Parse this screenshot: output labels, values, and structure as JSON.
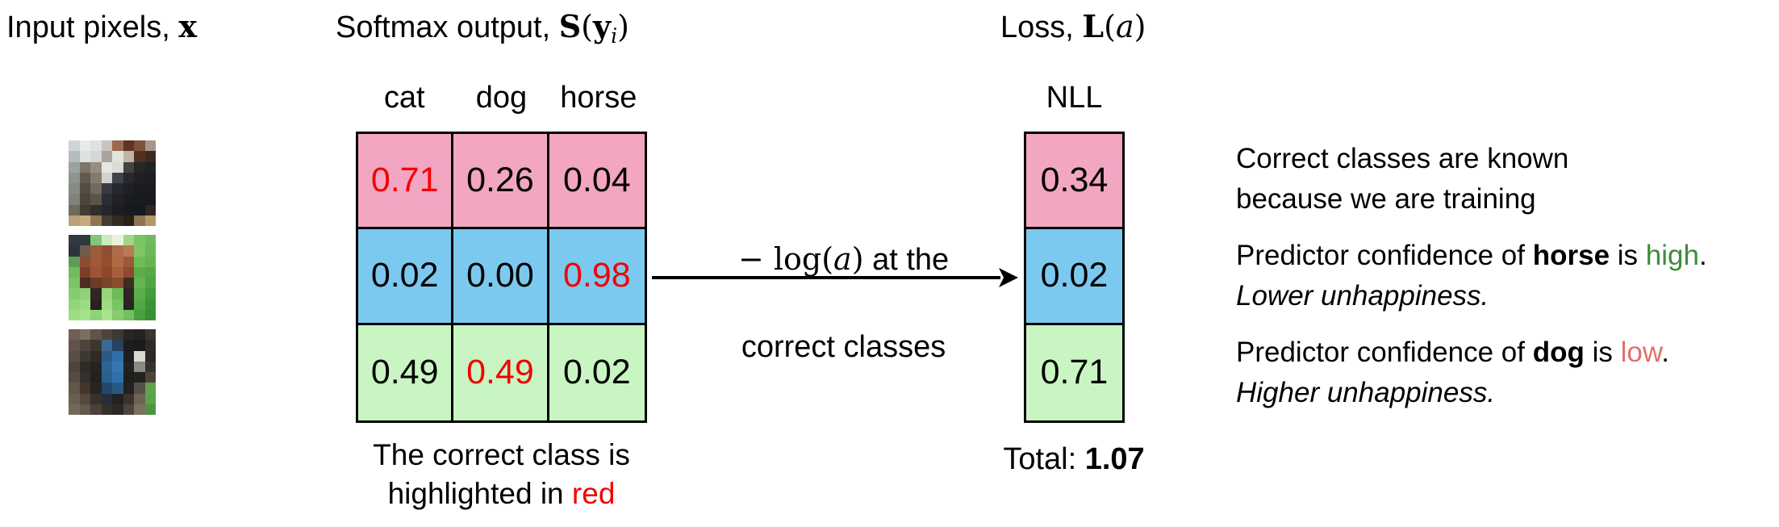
{
  "colors": {
    "row_pink": "#f2a6c2",
    "row_blue": "#7cc9f0",
    "row_green": "#c9f5c2",
    "highlight_red": "#f40000",
    "high_green": "#3c8c3c",
    "low_red": "#e2706c"
  },
  "titles": {
    "input_prefix": "Input pixels, ",
    "input_math": "x",
    "softmax_prefix": "Softmax output, ",
    "softmax_s": "S",
    "softmax_open": "(",
    "softmax_y": "y",
    "softmax_sub": "i",
    "softmax_close": ")",
    "loss_prefix": "Loss, ",
    "loss_l": "L",
    "loss_open": "(",
    "loss_a": "a",
    "loss_close": ")"
  },
  "class_headers": [
    "cat",
    "dog",
    "horse"
  ],
  "matrix": {
    "rows": [
      {
        "row_color": "pink",
        "cells": [
          {
            "value": "0.71",
            "highlight": true
          },
          {
            "value": "0.26",
            "highlight": false
          },
          {
            "value": "0.04",
            "highlight": false
          }
        ]
      },
      {
        "row_color": "blue",
        "cells": [
          {
            "value": "0.02",
            "highlight": false
          },
          {
            "value": "0.00",
            "highlight": false
          },
          {
            "value": "0.98",
            "highlight": true
          }
        ]
      },
      {
        "row_color": "green",
        "cells": [
          {
            "value": "0.49",
            "highlight": false
          },
          {
            "value": "0.49",
            "highlight": true
          },
          {
            "value": "0.02",
            "highlight": false
          }
        ]
      }
    ]
  },
  "arrow": {
    "label_math_prefix": "− log(",
    "label_math_a": "a",
    "label_math_close": ")",
    "label_rest": " at the",
    "label_line2": "correct classes"
  },
  "nll": {
    "header": "NLL",
    "values": [
      "0.34",
      "0.02",
      "0.71"
    ],
    "total_label": "Total: ",
    "total_value": "1.07"
  },
  "caption": {
    "line1": "The correct class is",
    "line2_prefix": "highlighted in ",
    "line2_red_word": "red"
  },
  "notes": {
    "p1_line1": "Correct classes are known",
    "p1_line2": "because we are training",
    "p2_prefix": "Predictor confidence of ",
    "p2_class": "horse",
    "p2_mid": " is ",
    "p2_level": "high",
    "p2_period": ".",
    "p2_line2": "Lower unhappiness.",
    "p3_prefix": "Predictor confidence of ",
    "p3_class": "dog",
    "p3_mid": " is ",
    "p3_level": "low",
    "p3_period": ".",
    "p3_line2": "Higher unhappiness."
  },
  "images": {
    "cat": {
      "label": "cat input image",
      "pixels": [
        [
          "#cfd6d6",
          "#e8ebea",
          "#dfe2e1",
          "#c9c4bd",
          "#9b6a4e",
          "#5e3423",
          "#7c523c",
          "#a8968a"
        ],
        [
          "#b4bcbe",
          "#dde1e0",
          "#d3d7d6",
          "#a8a49e",
          "#e3e3dd",
          "#c0b4a8",
          "#523122",
          "#3c2a22"
        ],
        [
          "#9aa2a2",
          "#7b756b",
          "#968e82",
          "#e6e6e0",
          "#dcdcd6",
          "#46423e",
          "#26262a",
          "#202228"
        ],
        [
          "#8f938e",
          "#615a4e",
          "#837c6e",
          "#d2d2cc",
          "#40424a",
          "#26282e",
          "#1e2026",
          "#1c1e24"
        ],
        [
          "#878b85",
          "#554d41",
          "#726a5c",
          "#383a40",
          "#26282e",
          "#1e2026",
          "#1a1c22",
          "#1a1c22"
        ],
        [
          "#7f837c",
          "#4a453d",
          "#5c5449",
          "#2c2e34",
          "#202228",
          "#1a1c22",
          "#181a20",
          "#181a20"
        ],
        [
          "#6f6a5e",
          "#413d33",
          "#332f2b",
          "#24262c",
          "#1c1e24",
          "#181a20",
          "#161820",
          "#2e2720"
        ],
        [
          "#bb9f78",
          "#c8a97e",
          "#907656",
          "#443c30",
          "#322b22",
          "#28211a",
          "#8e7350",
          "#b5956a"
        ]
      ]
    },
    "horse": {
      "label": "horse input image",
      "pixels": [
        [
          "#31393f",
          "#2e3a38",
          "#7fc87a",
          "#cdeabc",
          "#e9f2da",
          "#a2d684",
          "#7cc468",
          "#70bc5c"
        ],
        [
          "#2b333b",
          "#6b5c4c",
          "#9c5c3c",
          "#8e4e32",
          "#ae6c4a",
          "#ba7a52",
          "#80c466",
          "#6cb858"
        ],
        [
          "#5f9e52",
          "#8c4c34",
          "#a25836",
          "#964e30",
          "#b26a42",
          "#9c5838",
          "#70bc54",
          "#66b450"
        ],
        [
          "#70bc5c",
          "#7c3e2a",
          "#9c5434",
          "#8c4828",
          "#a6603c",
          "#8c4c2e",
          "#5cac4a",
          "#58a846"
        ],
        [
          "#7cc466",
          "#4c2e22",
          "#6c3c28",
          "#7c442a",
          "#8c4c2e",
          "#3c2c22",
          "#66b454",
          "#50a444"
        ],
        [
          "#88cc70",
          "#90d276",
          "#302622",
          "#96d67c",
          "#6cbc58",
          "#2e2622",
          "#5cac4c",
          "#429c3c"
        ],
        [
          "#92d67a",
          "#9ada82",
          "#262222",
          "#9edc84",
          "#78c462",
          "#2a2422",
          "#52a848",
          "#3c9438"
        ],
        [
          "#9cde84",
          "#a4e28c",
          "#90d276",
          "#a8e48e",
          "#88cc6e",
          "#74c05e",
          "#48a040",
          "#349232"
        ]
      ]
    },
    "dog": {
      "label": "dog input image",
      "pixels": [
        [
          "#6e6052",
          "#7d6f5d",
          "#60544a",
          "#4c433b",
          "#3e3832",
          "#2a2624",
          "#242220",
          "#3a332e"
        ],
        [
          "#62544a",
          "#4e443c",
          "#3c3630",
          "#3a6a92",
          "#26425e",
          "#1e1c1c",
          "#1c1a1a",
          "#2e2a26"
        ],
        [
          "#584e44",
          "#3e3831",
          "#2e2a26",
          "#2a5a86",
          "#2f6ea6",
          "#1f1e1e",
          "#d8d8d0",
          "#2c2824"
        ],
        [
          "#4e463e",
          "#2e2a27",
          "#242322",
          "#2c6496",
          "#3478b2",
          "#222120",
          "#8a8a82",
          "#36322e"
        ],
        [
          "#564c42",
          "#343029",
          "#222120",
          "#2a5f8e",
          "#3070a8",
          "#1f1e1e",
          "#242220",
          "#4a443c"
        ],
        [
          "#60564a",
          "#42362c",
          "#262422",
          "#24476a",
          "#2a5884",
          "#222020",
          "#56504a",
          "#62a04e"
        ],
        [
          "#6a5e50",
          "#55483a",
          "#38302a",
          "#242e3c",
          "#232221",
          "#3a342e",
          "#6e6456",
          "#58a448"
        ],
        [
          "#75685a",
          "#62584c",
          "#4a423a",
          "#36302a",
          "#2c2824",
          "#4e463c",
          "#7a7062",
          "#4c9440"
        ]
      ]
    }
  }
}
